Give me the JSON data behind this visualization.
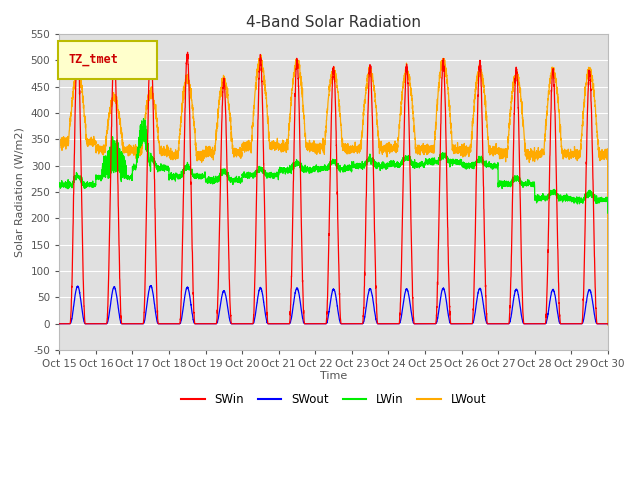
{
  "title": "4-Band Solar Radiation",
  "ylabel": "Solar Radiation (W/m2)",
  "xlabel": "Time",
  "ylim": [
    -50,
    550
  ],
  "xlim": [
    0,
    15
  ],
  "xtick_labels": [
    "Oct 15",
    "Oct 16",
    "Oct 17",
    "Oct 18",
    "Oct 19",
    "Oct 20",
    "Oct 21",
    "Oct 22",
    "Oct 23",
    "Oct 24",
    "Oct 25",
    "Oct 26",
    "Oct 27",
    "Oct 28",
    "Oct 29",
    "Oct 30"
  ],
  "legend_label": "TZ_tmet",
  "SWin_color": "#ff0000",
  "SWout_color": "#0000ff",
  "LWin_color": "#00ee00",
  "LWout_color": "#ffaa00",
  "background_color": "#e0e0e0",
  "figure_bg": "#ffffff",
  "title_fontsize": 11,
  "axis_fontsize": 8,
  "tick_fontsize": 7.5,
  "label_color": "#555555",
  "swin_peaks": [
    525,
    515,
    535,
    510,
    462,
    503,
    499,
    485,
    488,
    487,
    497,
    494,
    484,
    482,
    478
  ],
  "lwout_base": [
    345,
    330,
    328,
    320,
    325,
    338,
    336,
    332,
    332,
    332,
    332,
    328,
    322,
    322,
    322
  ],
  "lwout_peaks": [
    478,
    430,
    440,
    465,
    462,
    500,
    497,
    480,
    479,
    480,
    497,
    482,
    474,
    480,
    482
  ],
  "lwin_base": [
    263,
    277,
    296,
    280,
    272,
    282,
    292,
    295,
    300,
    302,
    307,
    300,
    265,
    238,
    235
  ]
}
